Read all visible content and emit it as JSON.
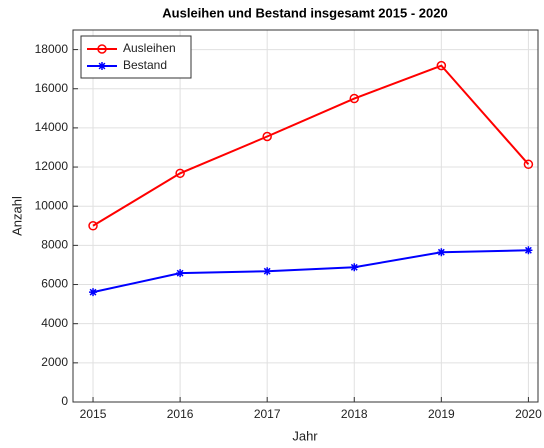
{
  "chart_data": {
    "type": "line",
    "title": "Ausleihen und Bestand insgesamt 2015 - 2020",
    "x_label": "Jahr",
    "y_label": "Anzahl",
    "x": [
      2015,
      2016,
      2017,
      2018,
      2019,
      2020
    ],
    "series": [
      {
        "name": "Ausleihen",
        "color": "#ff0000",
        "marker": "circle",
        "values": [
          9000,
          11680,
          13560,
          15500,
          17180,
          12140
        ]
      },
      {
        "name": "Bestand",
        "color": "#0000ff",
        "marker": "asterisk",
        "values": [
          5610,
          6580,
          6680,
          6880,
          7650,
          7750
        ]
      }
    ],
    "xlim": [
      2014.77,
      2020.11
    ],
    "xticks": [
      2015,
      2016,
      2017,
      2018,
      2019,
      2020
    ],
    "ylim": [
      0,
      19000
    ],
    "yticks": [
      0,
      2000,
      4000,
      6000,
      8000,
      10000,
      12000,
      14000,
      16000,
      18000
    ],
    "grid": true,
    "legend": "upper-left"
  }
}
